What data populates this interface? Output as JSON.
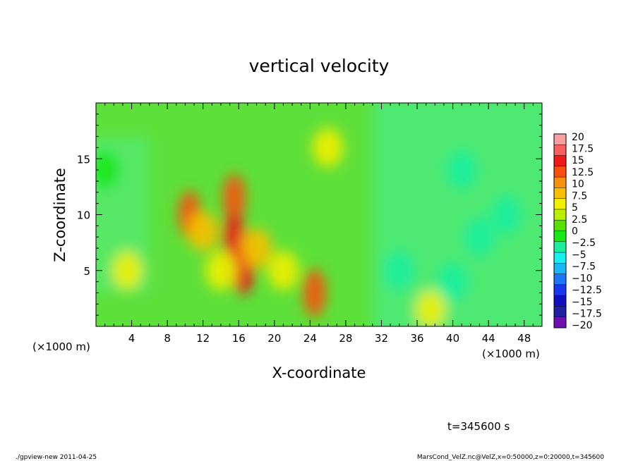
{
  "chart_data": {
    "type": "heatmap",
    "title": "vertical velocity",
    "xlabel": "X-coordinate",
    "ylabel": "Z-coordinate",
    "x_unit_left": "(×1000 m)",
    "x_unit_right": "(×1000 m)",
    "xlim": [
      0,
      50
    ],
    "ylim": [
      0,
      20
    ],
    "x_ticks": [
      "4",
      "8",
      "12",
      "16",
      "20",
      "24",
      "28",
      "32",
      "36",
      "40",
      "44",
      "48"
    ],
    "y_ticks": [
      "5",
      "10",
      "15"
    ],
    "colorbar": {
      "labels": [
        "20",
        "17.5",
        "15",
        "12.5",
        "10",
        "7.5",
        "5",
        "2.5",
        "0",
        "−2.5",
        "−5",
        "−7.5",
        "−10",
        "−12.5",
        "−15",
        "−17.5",
        "−20"
      ],
      "colors": [
        "#f8a0a0",
        "#f86060",
        "#f01818",
        "#f85010",
        "#f89010",
        "#f8c000",
        "#f0f000",
        "#b8f000",
        "#58e000",
        "#18e818",
        "#18f0a0",
        "#18f0f0",
        "#18b8f8",
        "#1878f8",
        "#1838f0",
        "#1010c0",
        "#2020a0",
        "#7010b0"
      ]
    },
    "time_label": "t=345600 s",
    "footer_left": "./gpview-new  2011-04-25",
    "footer_right": "MarsCond_VelZ.nc@VelZ,x=0:50000,z=0:20000,t=345600",
    "background_color": "#5ee03a",
    "features": [
      {
        "x": 15.5,
        "z": 11.5,
        "value": 12
      },
      {
        "x": 15.5,
        "z": 8.0,
        "value": 13
      },
      {
        "x": 16.5,
        "z": 5.0,
        "value": 13
      },
      {
        "x": 10.5,
        "z": 10.0,
        "value": 11
      },
      {
        "x": 12.0,
        "z": 8.5,
        "value": 7
      },
      {
        "x": 24.5,
        "z": 3.0,
        "value": 11
      },
      {
        "x": 14.0,
        "z": 5.0,
        "value": 5
      },
      {
        "x": 18.0,
        "z": 7.0,
        "value": 6
      },
      {
        "x": 21.0,
        "z": 5.0,
        "value": 4
      },
      {
        "x": 37.5,
        "z": 1.5,
        "value": 5
      },
      {
        "x": 3.5,
        "z": 5.0,
        "value": 4
      },
      {
        "x": 26.0,
        "z": 16.0,
        "value": 3
      },
      {
        "x": 46.0,
        "z": 10.0,
        "value": -7
      },
      {
        "x": 43.0,
        "z": 8.0,
        "value": -6
      },
      {
        "x": 41.0,
        "z": 14.0,
        "value": -5
      },
      {
        "x": 34.0,
        "z": 5.0,
        "value": -6
      },
      {
        "x": 1.0,
        "z": 14.0,
        "value": -4
      },
      {
        "x": 40.0,
        "z": 4.0,
        "value": -5
      }
    ]
  }
}
